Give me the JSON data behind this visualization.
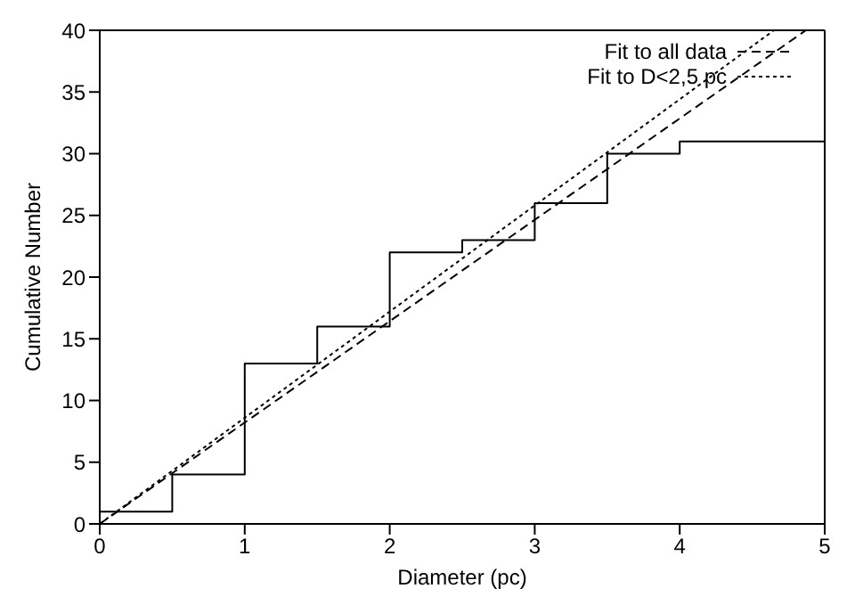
{
  "chart_data": {
    "type": "step",
    "xlabel": "Diameter (pc)",
    "ylabel": "Cumulative Number",
    "xlim": [
      0,
      5
    ],
    "xticks": [
      0,
      1,
      2,
      3,
      4,
      5
    ],
    "ylim": [
      0,
      40
    ],
    "yticks": [
      0,
      5,
      10,
      15,
      20,
      25,
      30,
      35,
      40
    ],
    "legend": "top right",
    "series": [
      {
        "color": "#000000",
        "line_style": "solid",
        "x": [
          0,
          0.5,
          1,
          1.5,
          2,
          2.5,
          3,
          3.5,
          4,
          5
        ],
        "values": [
          1,
          4,
          13,
          16,
          22,
          23,
          26,
          30,
          31,
          31
        ]
      },
      {
        "type": "line",
        "name": "Fit to all data",
        "color": "#000000",
        "line_style": "dashed",
        "x": [
          0,
          4.87
        ],
        "values": [
          0,
          40
        ]
      },
      {
        "type": "line",
        "name": "Fit to D<2,5 pc",
        "color": "#000000",
        "line_style": "dotted",
        "x": [
          0,
          4.65
        ],
        "values": [
          0,
          40
        ]
      }
    ]
  }
}
